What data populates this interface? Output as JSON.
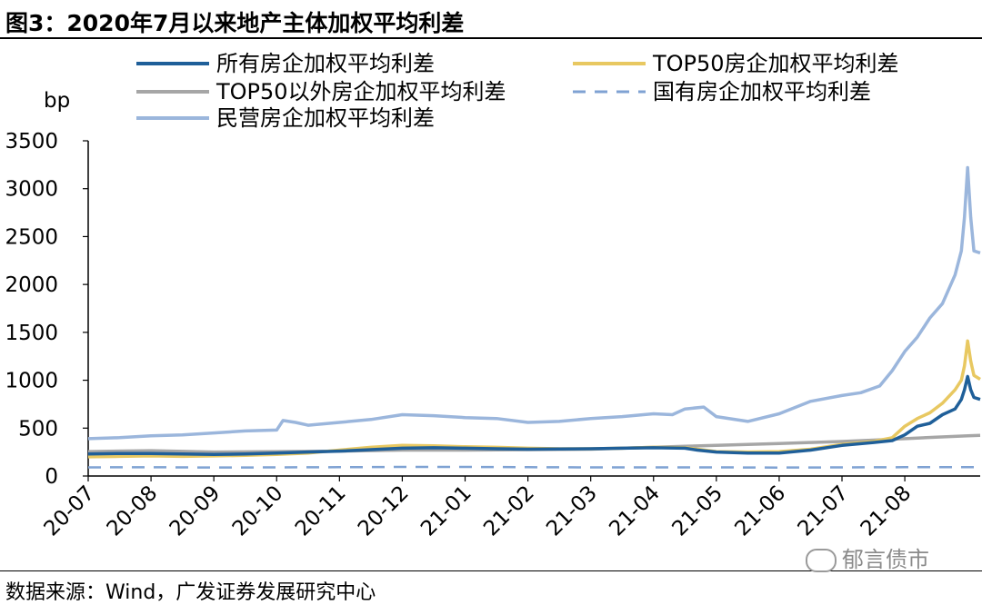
{
  "figure": {
    "title": "图3：2020年7月以来地产主体加权平均利差",
    "source": "数据来源：Wind，广发证券发展研究中心",
    "watermark": "郁言债市"
  },
  "chart_data": {
    "type": "line",
    "ylabel": "bp",
    "ylim": [
      0,
      3500
    ],
    "yticks": [
      0,
      500,
      1000,
      1500,
      2000,
      2500,
      3000,
      3500
    ],
    "x_tick_labels": [
      "20-07",
      "20-08",
      "20-09",
      "20-10",
      "20-11",
      "20-12",
      "21-01",
      "21-02",
      "21-03",
      "21-04",
      "21-05",
      "21-06",
      "21-07",
      "21-08"
    ],
    "xlim": [
      0,
      14.2
    ],
    "grid": false,
    "legend_position": "top",
    "series": [
      {
        "name": "所有房企加权平均利差",
        "color": "#1f5f99",
        "style": "solid",
        "points": [
          [
            0,
            230
          ],
          [
            0.5,
            235
          ],
          [
            1,
            235
          ],
          [
            1.5,
            230
          ],
          [
            2,
            225
          ],
          [
            2.5,
            230
          ],
          [
            3,
            240
          ],
          [
            3.5,
            250
          ],
          [
            4,
            260
          ],
          [
            4.5,
            275
          ],
          [
            5,
            290
          ],
          [
            5.5,
            295
          ],
          [
            6,
            290
          ],
          [
            6.5,
            285
          ],
          [
            7,
            280
          ],
          [
            7.5,
            282
          ],
          [
            8,
            285
          ],
          [
            8.5,
            290
          ],
          [
            9,
            295
          ],
          [
            9.5,
            290
          ],
          [
            9.7,
            270
          ],
          [
            10,
            250
          ],
          [
            10.5,
            240
          ],
          [
            11,
            240
          ],
          [
            11.5,
            270
          ],
          [
            12,
            320
          ],
          [
            12.5,
            350
          ],
          [
            12.8,
            370
          ],
          [
            13,
            430
          ],
          [
            13.2,
            520
          ],
          [
            13.4,
            550
          ],
          [
            13.6,
            640
          ],
          [
            13.8,
            700
          ],
          [
            13.9,
            800
          ],
          [
            13.95,
            900
          ],
          [
            14.0,
            1040
          ],
          [
            14.05,
            900
          ],
          [
            14.1,
            820
          ],
          [
            14.2,
            800
          ]
        ]
      },
      {
        "name": "TOP50房企加权平均利差",
        "color": "#e8c861",
        "style": "solid",
        "points": [
          [
            0,
            200
          ],
          [
            0.5,
            205
          ],
          [
            1,
            210
          ],
          [
            1.5,
            205
          ],
          [
            2,
            210
          ],
          [
            2.5,
            215
          ],
          [
            3,
            225
          ],
          [
            3.5,
            240
          ],
          [
            4,
            270
          ],
          [
            4.5,
            300
          ],
          [
            5,
            320
          ],
          [
            5.5,
            315
          ],
          [
            6,
            305
          ],
          [
            6.5,
            300
          ],
          [
            7,
            290
          ],
          [
            7.5,
            285
          ],
          [
            8,
            285
          ],
          [
            8.5,
            290
          ],
          [
            9,
            300
          ],
          [
            9.5,
            295
          ],
          [
            9.7,
            280
          ],
          [
            10,
            255
          ],
          [
            10.5,
            250
          ],
          [
            11,
            255
          ],
          [
            11.5,
            280
          ],
          [
            12,
            330
          ],
          [
            12.5,
            360
          ],
          [
            12.8,
            400
          ],
          [
            13,
            520
          ],
          [
            13.2,
            600
          ],
          [
            13.4,
            660
          ],
          [
            13.6,
            760
          ],
          [
            13.8,
            900
          ],
          [
            13.9,
            1000
          ],
          [
            13.95,
            1150
          ],
          [
            14.0,
            1410
          ],
          [
            14.05,
            1200
          ],
          [
            14.1,
            1050
          ],
          [
            14.2,
            1010
          ]
        ]
      },
      {
        "name": "TOP50以外房企加权平均利差",
        "color": "#a6a6a6",
        "style": "solid",
        "points": [
          [
            0,
            255
          ],
          [
            1,
            265
          ],
          [
            2,
            250
          ],
          [
            3,
            255
          ],
          [
            4,
            260
          ],
          [
            5,
            270
          ],
          [
            6,
            270
          ],
          [
            7,
            275
          ],
          [
            8,
            280
          ],
          [
            9,
            300
          ],
          [
            9.5,
            310
          ],
          [
            10,
            320
          ],
          [
            10.5,
            330
          ],
          [
            11,
            340
          ],
          [
            11.5,
            350
          ],
          [
            12,
            360
          ],
          [
            12.5,
            375
          ],
          [
            13,
            390
          ],
          [
            13.5,
            405
          ],
          [
            14,
            420
          ],
          [
            14.2,
            425
          ]
        ]
      },
      {
        "name": "国有房企加权平均利差",
        "color": "#7fa2d3",
        "style": "dashed",
        "points": [
          [
            0,
            90
          ],
          [
            1,
            92
          ],
          [
            2,
            88
          ],
          [
            3,
            90
          ],
          [
            4,
            92
          ],
          [
            5,
            95
          ],
          [
            6,
            95
          ],
          [
            7,
            92
          ],
          [
            8,
            90
          ],
          [
            9,
            90
          ],
          [
            10,
            90
          ],
          [
            11,
            88
          ],
          [
            12,
            90
          ],
          [
            13,
            92
          ],
          [
            14,
            92
          ],
          [
            14.2,
            92
          ]
        ]
      },
      {
        "name": "民营房企加权平均利差",
        "color": "#9bb6dc",
        "style": "solid",
        "points": [
          [
            0,
            390
          ],
          [
            0.5,
            400
          ],
          [
            1,
            420
          ],
          [
            1.5,
            430
          ],
          [
            2,
            450
          ],
          [
            2.5,
            470
          ],
          [
            3,
            480
          ],
          [
            3.1,
            580
          ],
          [
            3.3,
            560
          ],
          [
            3.5,
            530
          ],
          [
            4,
            560
          ],
          [
            4.5,
            590
          ],
          [
            5,
            640
          ],
          [
            5.5,
            630
          ],
          [
            6,
            610
          ],
          [
            6.5,
            600
          ],
          [
            7,
            560
          ],
          [
            7.5,
            570
          ],
          [
            8,
            600
          ],
          [
            8.5,
            620
          ],
          [
            9,
            650
          ],
          [
            9.3,
            640
          ],
          [
            9.5,
            700
          ],
          [
            9.8,
            720
          ],
          [
            10,
            620
          ],
          [
            10.5,
            570
          ],
          [
            11,
            650
          ],
          [
            11.5,
            780
          ],
          [
            12,
            840
          ],
          [
            12.3,
            870
          ],
          [
            12.6,
            940
          ],
          [
            12.8,
            1100
          ],
          [
            13,
            1300
          ],
          [
            13.2,
            1450
          ],
          [
            13.4,
            1650
          ],
          [
            13.6,
            1800
          ],
          [
            13.8,
            2100
          ],
          [
            13.9,
            2350
          ],
          [
            13.95,
            2700
          ],
          [
            14.0,
            3220
          ],
          [
            14.05,
            2700
          ],
          [
            14.1,
            2350
          ],
          [
            14.2,
            2330
          ]
        ]
      }
    ]
  }
}
